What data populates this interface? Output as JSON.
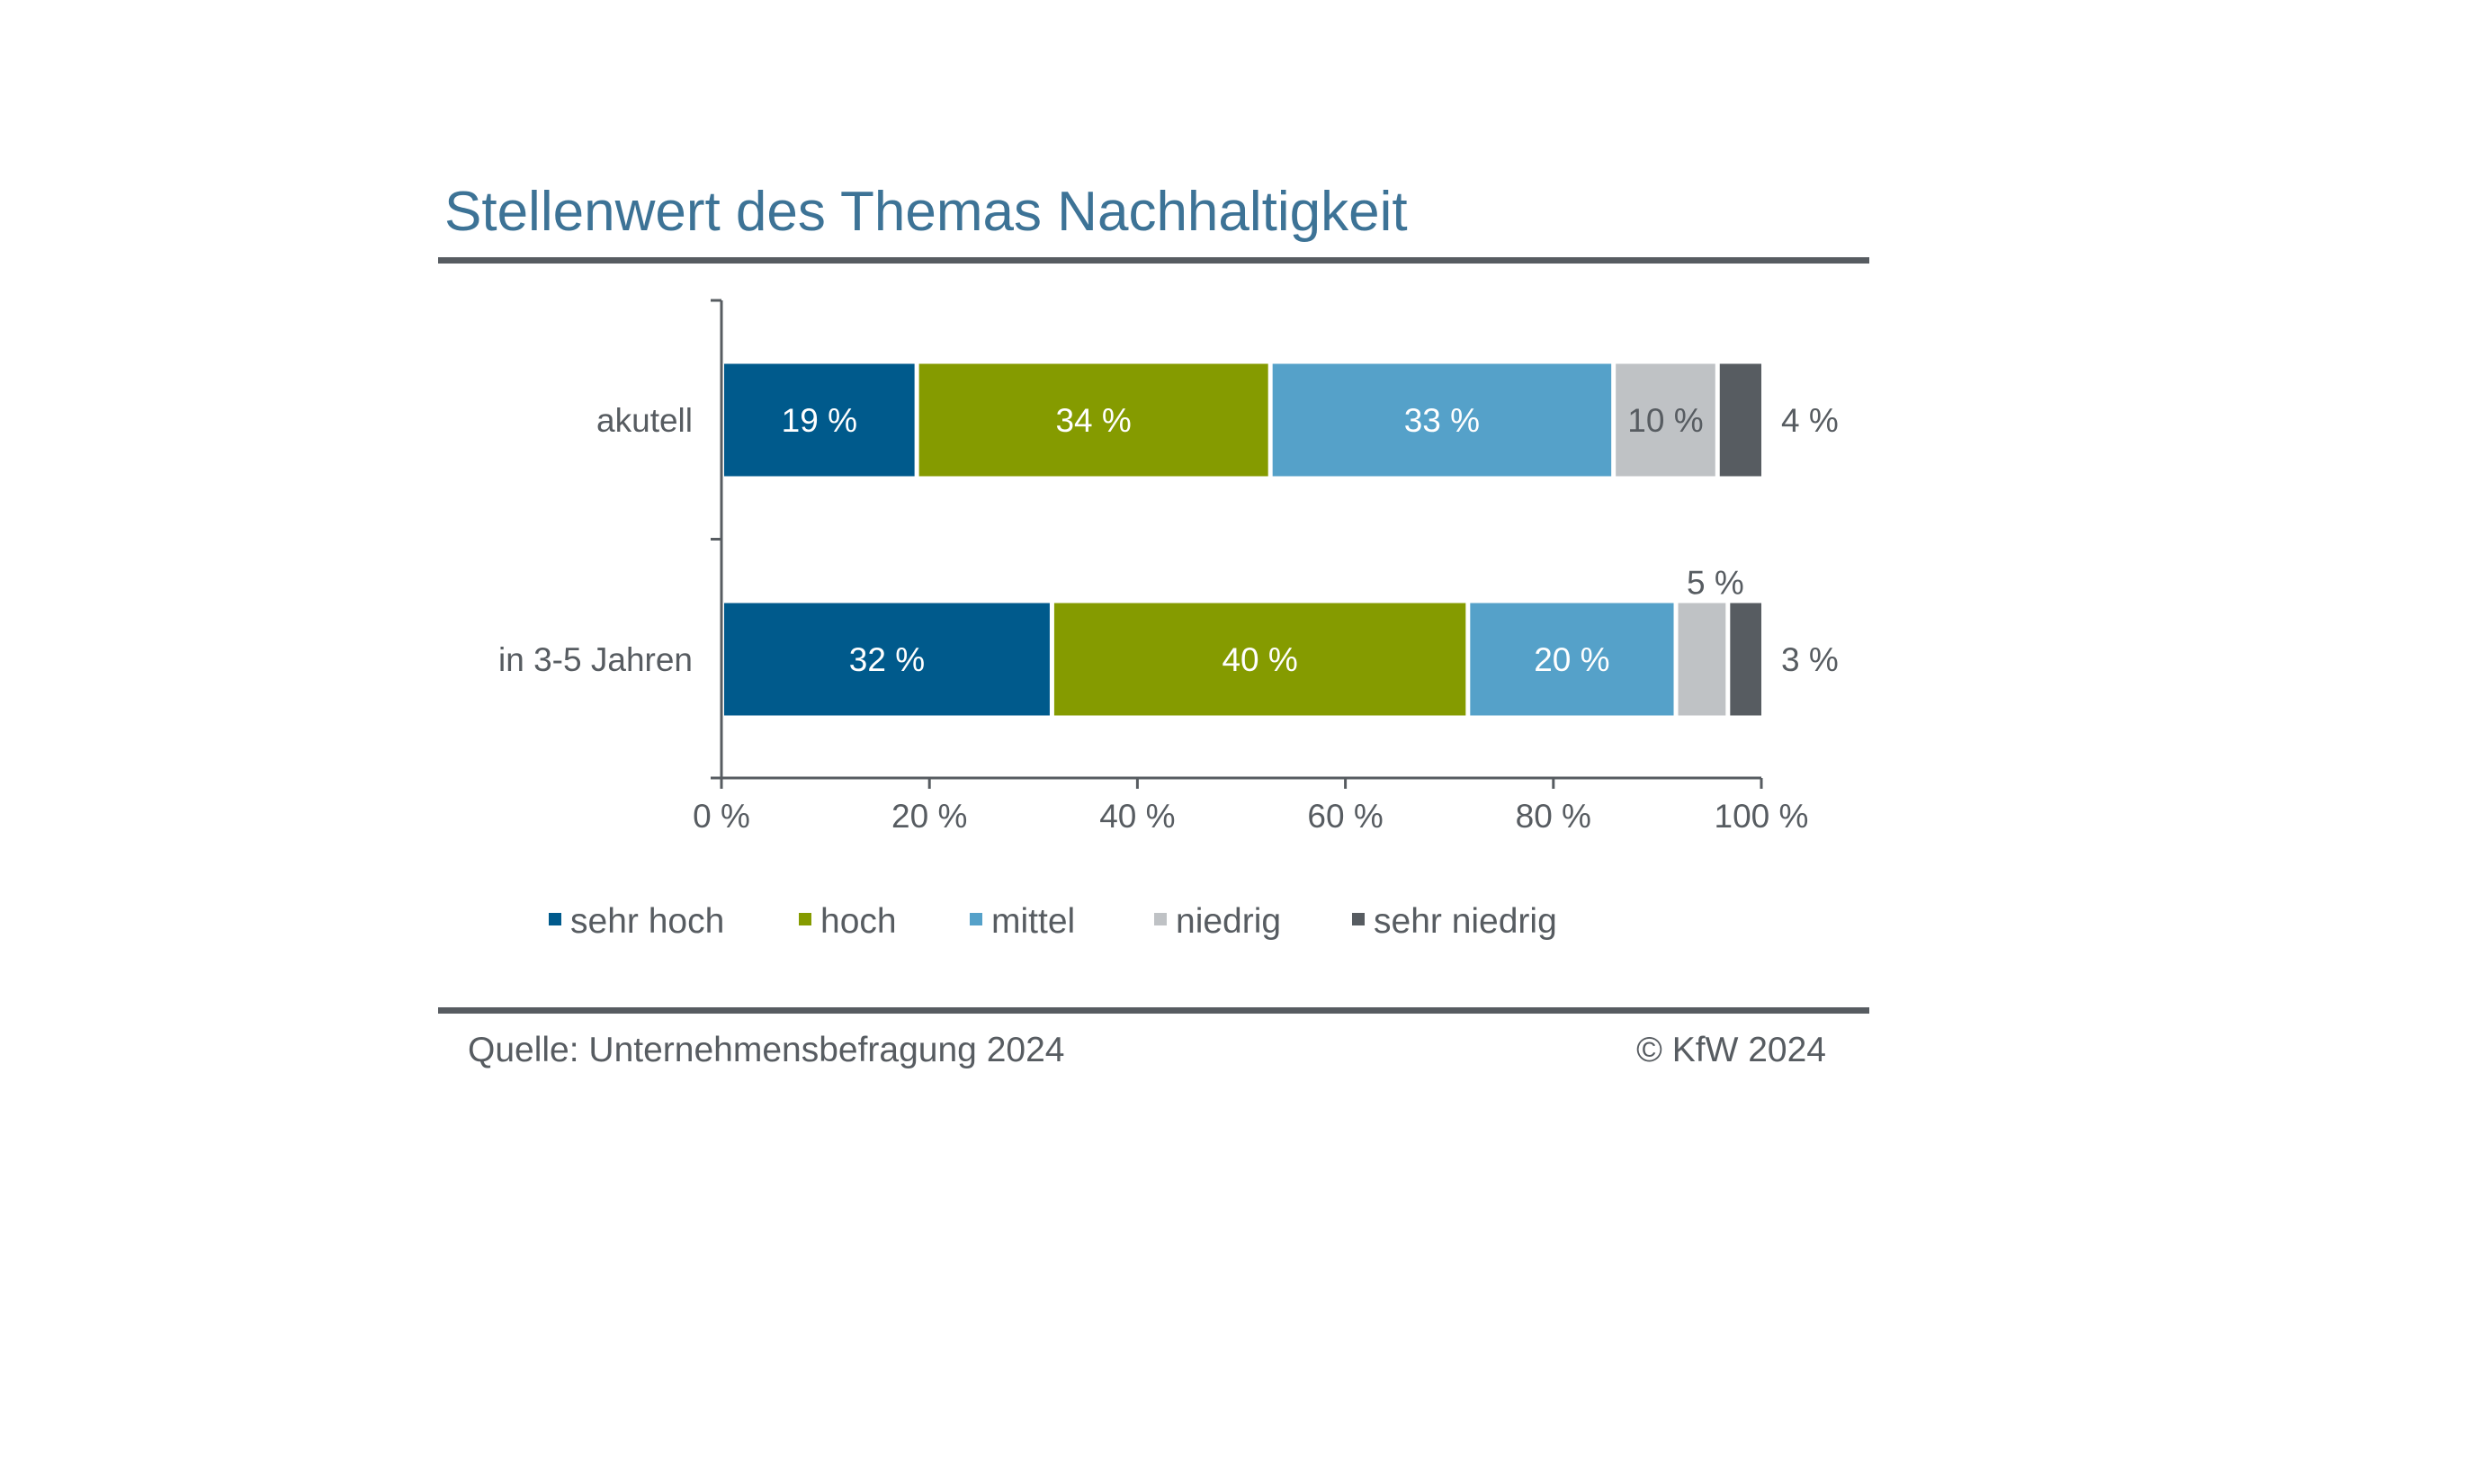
{
  "chart_data": {
    "type": "bar",
    "orientation": "horizontal",
    "stacked": true,
    "title": "Stellenwert des Themas Nachhaltigkeit",
    "categories": [
      "akutell",
      "in 3-5 Jahren"
    ],
    "series": [
      {
        "name": "sehr hoch",
        "color": "#005a8c",
        "label_color": "#ffffff",
        "values": [
          19,
          32
        ],
        "labels": [
          "19 %",
          "32 %"
        ]
      },
      {
        "name": "hoch",
        "color": "#859b00",
        "label_color": "#ffffff",
        "values": [
          34,
          40
        ],
        "labels": [
          "34 %",
          "40 %"
        ]
      },
      {
        "name": "mittel",
        "color": "#55a1c9",
        "label_color": "#ffffff",
        "values": [
          33,
          20
        ],
        "labels": [
          "33 %",
          "20 %"
        ]
      },
      {
        "name": "niedrig",
        "color": "#bfc2c5",
        "label_color": "#575c61",
        "values": [
          10,
          5
        ],
        "labels": [
          "10 %",
          "5 %"
        ]
      },
      {
        "name": "sehr niedrig",
        "color": "#575c61",
        "label_color": "#575c61",
        "values": [
          4,
          3
        ],
        "labels": [
          "4 %",
          "3 %"
        ]
      }
    ],
    "xlim": [
      0,
      100
    ],
    "xticks": [
      "0 %",
      "20 %",
      "40 %",
      "60 %",
      "80 %",
      "100 %"
    ],
    "legend": "bottom",
    "grid": false,
    "source": "Quelle: Unternehmensbefragung 2024",
    "copyright": "© KfW 2024"
  }
}
